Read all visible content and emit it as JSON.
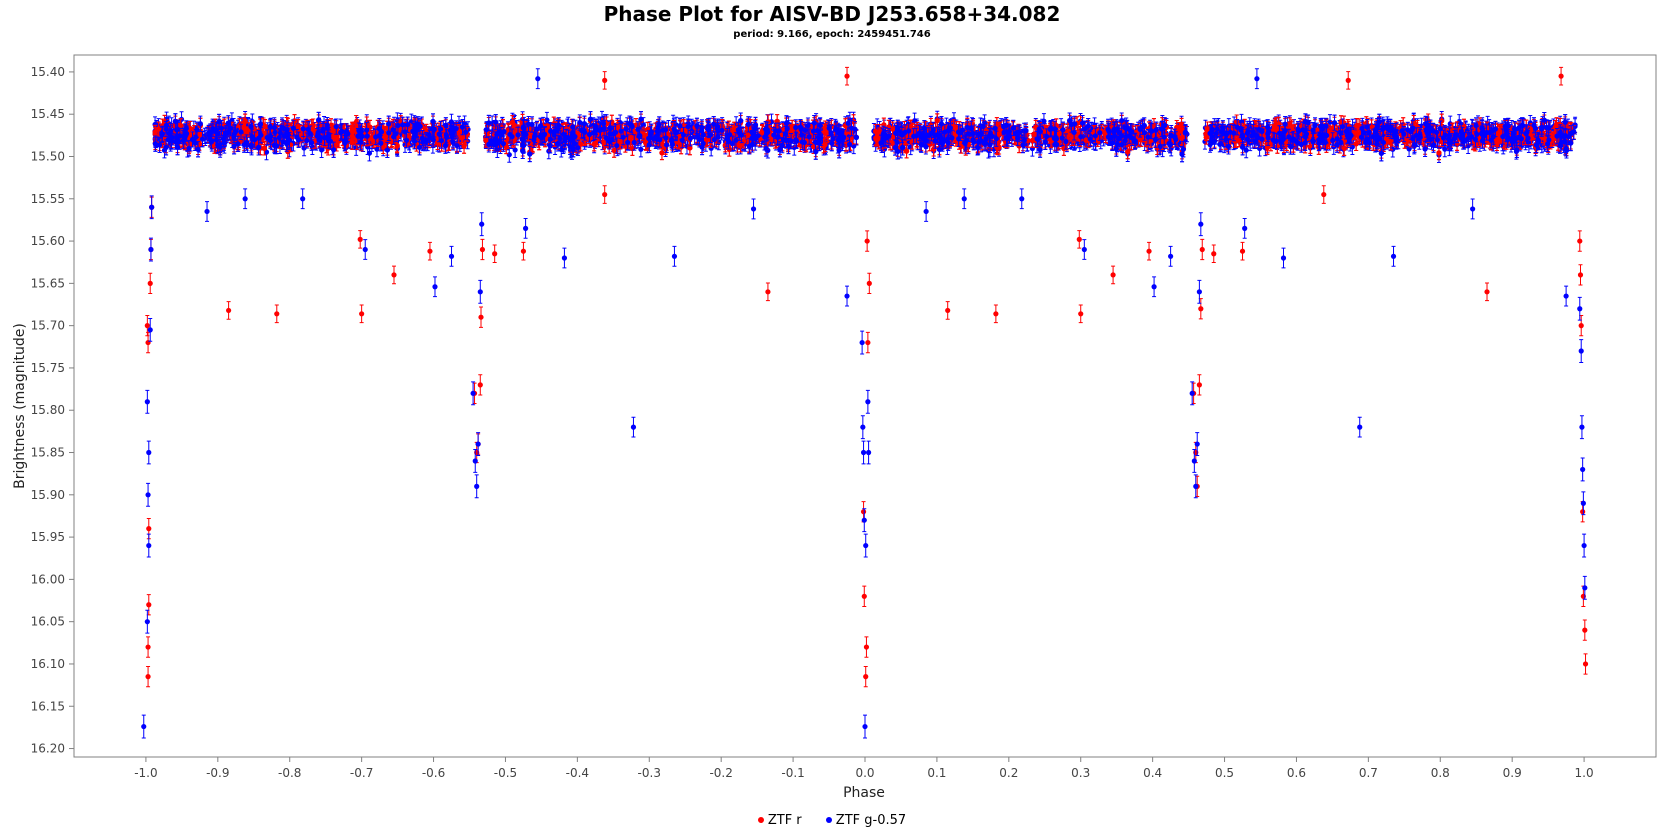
{
  "chart_data": {
    "type": "scatter",
    "title": "Phase Plot for AISV-BD J253.658+34.082",
    "subtitle": "period: 9.166, epoch: 2459451.746",
    "xlabel": "Phase",
    "ylabel": "Brightness (magnitude)",
    "xlim": [
      -1.1,
      1.1
    ],
    "ylim": [
      15.38,
      16.21
    ],
    "y_inverted": true,
    "grid": false,
    "legend_position": "bottom",
    "x_ticks": [
      "-1.0",
      "-0.9",
      "-0.8",
      "-0.7",
      "-0.6",
      "-0.5",
      "-0.4",
      "-0.3",
      "-0.2",
      "-0.1",
      "0.0",
      "0.1",
      "0.2",
      "0.3",
      "0.4",
      "0.5",
      "0.6",
      "0.7",
      "0.8",
      "0.9",
      "1.0"
    ],
    "y_ticks": [
      "15.40",
      "15.45",
      "15.50",
      "15.55",
      "15.60",
      "15.65",
      "15.70",
      "15.75",
      "15.80",
      "15.85",
      "15.90",
      "15.95",
      "16.00",
      "16.05",
      "16.10",
      "16.15",
      "16.20"
    ],
    "series": [
      {
        "name": "ZTF r",
        "color": "#ff0000",
        "baseline": 15.475,
        "scatter": 0.025,
        "error": 0.008,
        "outliers": [
          {
            "x": -0.885,
            "y": 15.682
          },
          {
            "x": -0.818,
            "y": 15.686
          },
          {
            "x": -0.7,
            "y": 15.686
          },
          {
            "x": -0.655,
            "y": 15.64
          },
          {
            "x": -0.702,
            "y": 15.598
          },
          {
            "x": -0.605,
            "y": 15.612
          },
          {
            "x": -0.475,
            "y": 15.612
          },
          {
            "x": -0.515,
            "y": 15.615
          },
          {
            "x": -0.362,
            "y": 15.545
          },
          {
            "x": -0.135,
            "y": 15.66
          },
          {
            "x": 0.115,
            "y": 15.682
          },
          {
            "x": 0.182,
            "y": 15.686
          },
          {
            "x": 0.3,
            "y": 15.686
          },
          {
            "x": 0.345,
            "y": 15.64
          },
          {
            "x": 0.298,
            "y": 15.598
          },
          {
            "x": 0.395,
            "y": 15.612
          },
          {
            "x": 0.525,
            "y": 15.612
          },
          {
            "x": 0.485,
            "y": 15.615
          },
          {
            "x": 0.638,
            "y": 15.545
          },
          {
            "x": 0.865,
            "y": 15.66
          },
          {
            "x": -0.362,
            "y": 15.41
          },
          {
            "x": 0.672,
            "y": 15.41
          },
          {
            "x": -0.025,
            "y": 15.405
          },
          {
            "x": 0.968,
            "y": 15.405
          }
        ],
        "eclipse": [
          {
            "x": -0.998,
            "y": 15.7
          },
          {
            "x": -0.997,
            "y": 15.72
          },
          {
            "x": -0.996,
            "y": 15.94
          },
          {
            "x": -0.996,
            "y": 16.03
          },
          {
            "x": -0.997,
            "y": 16.08
          },
          {
            "x": -0.997,
            "y": 16.115
          },
          {
            "x": -0.994,
            "y": 15.65
          },
          {
            "x": -0.993,
            "y": 15.61
          },
          {
            "x": -0.992,
            "y": 15.56
          },
          {
            "x": -0.002,
            "y": 15.92
          },
          {
            "x": -0.001,
            "y": 16.02
          },
          {
            "x": 0.002,
            "y": 16.08
          },
          {
            "x": 0.001,
            "y": 16.115
          },
          {
            "x": 0.004,
            "y": 15.72
          },
          {
            "x": 0.006,
            "y": 15.65
          },
          {
            "x": 0.003,
            "y": 15.6
          },
          {
            "x": 0.998,
            "y": 15.92
          },
          {
            "x": 0.999,
            "y": 16.02
          },
          {
            "x": 1.001,
            "y": 16.06
          },
          {
            "x": 1.002,
            "y": 16.1
          },
          {
            "x": 0.996,
            "y": 15.7
          },
          {
            "x": 0.994,
            "y": 15.6
          },
          {
            "x": 0.995,
            "y": 15.64
          },
          {
            "x": -0.543,
            "y": 15.78
          },
          {
            "x": -0.54,
            "y": 15.85
          },
          {
            "x": -0.538,
            "y": 15.84
          },
          {
            "x": -0.535,
            "y": 15.77
          },
          {
            "x": -0.534,
            "y": 15.69
          },
          {
            "x": -0.532,
            "y": 15.61
          },
          {
            "x": 0.457,
            "y": 15.78
          },
          {
            "x": 0.46,
            "y": 15.85
          },
          {
            "x": 0.462,
            "y": 15.89
          },
          {
            "x": 0.465,
            "y": 15.77
          },
          {
            "x": 0.467,
            "y": 15.68
          },
          {
            "x": 0.469,
            "y": 15.61
          }
        ]
      },
      {
        "name": "ZTF g-0.57",
        "color": "#0000ff",
        "baseline": 15.475,
        "scatter": 0.028,
        "error": 0.009,
        "outliers": [
          {
            "x": -0.915,
            "y": 15.565
          },
          {
            "x": -0.862,
            "y": 15.55
          },
          {
            "x": -0.782,
            "y": 15.55
          },
          {
            "x": -0.695,
            "y": 15.61
          },
          {
            "x": -0.598,
            "y": 15.654
          },
          {
            "x": -0.575,
            "y": 15.618
          },
          {
            "x": -0.472,
            "y": 15.585
          },
          {
            "x": -0.418,
            "y": 15.62
          },
          {
            "x": -0.265,
            "y": 15.618
          },
          {
            "x": -0.322,
            "y": 15.82
          },
          {
            "x": -0.155,
            "y": 15.562
          },
          {
            "x": -0.025,
            "y": 15.665
          },
          {
            "x": 0.085,
            "y": 15.565
          },
          {
            "x": 0.138,
            "y": 15.55
          },
          {
            "x": 0.218,
            "y": 15.55
          },
          {
            "x": 0.305,
            "y": 15.61
          },
          {
            "x": 0.402,
            "y": 15.654
          },
          {
            "x": 0.425,
            "y": 15.618
          },
          {
            "x": 0.528,
            "y": 15.585
          },
          {
            "x": 0.582,
            "y": 15.62
          },
          {
            "x": 0.735,
            "y": 15.618
          },
          {
            "x": 0.688,
            "y": 15.82
          },
          {
            "x": 0.845,
            "y": 15.562
          },
          {
            "x": 0.975,
            "y": 15.665
          },
          {
            "x": -0.455,
            "y": 15.408
          },
          {
            "x": 0.545,
            "y": 15.408
          }
        ],
        "eclipse": [
          {
            "x": -0.998,
            "y": 15.79
          },
          {
            "x": -0.996,
            "y": 15.85
          },
          {
            "x": -0.997,
            "y": 15.9
          },
          {
            "x": -0.996,
            "y": 15.96
          },
          {
            "x": -0.998,
            "y": 16.05
          },
          {
            "x": -1.003,
            "y": 16.174
          },
          {
            "x": -0.994,
            "y": 15.705
          },
          {
            "x": -0.993,
            "y": 15.61
          },
          {
            "x": -0.992,
            "y": 15.56
          },
          {
            "x": -0.003,
            "y": 15.82
          },
          {
            "x": -0.002,
            "y": 15.85
          },
          {
            "x": -0.001,
            "y": 15.93
          },
          {
            "x": 0.001,
            "y": 15.96
          },
          {
            "x": 0.0,
            "y": 16.174
          },
          {
            "x": 0.004,
            "y": 15.79
          },
          {
            "x": 0.005,
            "y": 15.85
          },
          {
            "x": -0.004,
            "y": 15.72
          },
          {
            "x": 0.997,
            "y": 15.82
          },
          {
            "x": 0.998,
            "y": 15.87
          },
          {
            "x": 0.999,
            "y": 15.91
          },
          {
            "x": 1.0,
            "y": 15.96
          },
          {
            "x": 1.001,
            "y": 16.01
          },
          {
            "x": 0.996,
            "y": 15.73
          },
          {
            "x": 0.994,
            "y": 15.68
          },
          {
            "x": -0.545,
            "y": 15.78
          },
          {
            "x": -0.542,
            "y": 15.86
          },
          {
            "x": -0.54,
            "y": 15.89
          },
          {
            "x": -0.538,
            "y": 15.84
          },
          {
            "x": -0.535,
            "y": 15.66
          },
          {
            "x": -0.533,
            "y": 15.58
          },
          {
            "x": 0.455,
            "y": 15.78
          },
          {
            "x": 0.458,
            "y": 15.86
          },
          {
            "x": 0.46,
            "y": 15.89
          },
          {
            "x": 0.462,
            "y": 15.84
          },
          {
            "x": 0.465,
            "y": 15.66
          },
          {
            "x": 0.467,
            "y": 15.58
          }
        ]
      }
    ]
  }
}
